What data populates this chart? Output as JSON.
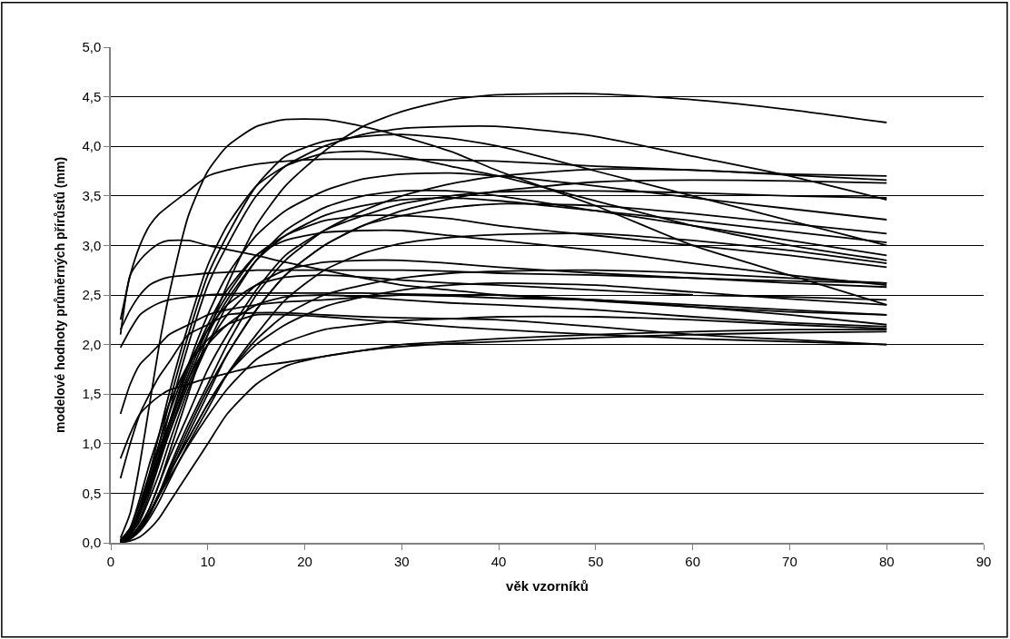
{
  "chart_data": {
    "type": "line",
    "xlabel": "věk vzorníků",
    "ylabel": "modelové hodnoty průměrných přírůstů (mm)",
    "x": [
      1,
      2,
      3,
      4,
      5,
      6,
      8,
      10,
      12,
      15,
      18,
      22,
      26,
      30,
      35,
      40,
      50,
      60,
      70,
      80
    ],
    "xlim": [
      0,
      90
    ],
    "xticks": [
      0,
      10,
      20,
      30,
      40,
      50,
      60,
      70,
      80,
      90
    ],
    "ylim": [
      0,
      5
    ],
    "yticks": [
      {
        "value": 0,
        "label": "0,0"
      },
      {
        "value": 0.5,
        "label": "0,5"
      },
      {
        "value": 1,
        "label": "1,0"
      },
      {
        "value": 1.5,
        "label": "1,5"
      },
      {
        "value": 2,
        "label": "2,0"
      },
      {
        "value": 2.5,
        "label": "2,5"
      },
      {
        "value": 3,
        "label": "3,0"
      },
      {
        "value": 3.5,
        "label": "3,5"
      },
      {
        "value": 4,
        "label": "4,0"
      },
      {
        "value": 4.5,
        "label": "4,5"
      },
      {
        "value": 5,
        "label": "5,0"
      }
    ],
    "grid": "y",
    "series": [
      {
        "color": "#000000",
        "values": [
          0.0,
          0.05,
          0.15,
          0.35,
          0.6,
          0.9,
          1.5,
          2.1,
          2.6,
          3.2,
          3.6,
          3.95,
          4.2,
          4.35,
          4.47,
          4.52,
          4.53,
          4.47,
          4.37,
          4.24
        ]
      },
      {
        "color": "#000000",
        "values": [
          0.05,
          0.3,
          0.8,
          1.4,
          2.0,
          2.5,
          3.3,
          3.75,
          4.0,
          4.2,
          4.27,
          4.27,
          4.2,
          4.1,
          3.95,
          3.75,
          3.4,
          3.0,
          2.7,
          2.4
        ]
      },
      {
        "color": "#000000",
        "values": [
          2.25,
          2.7,
          3.0,
          3.2,
          3.32,
          3.4,
          3.55,
          3.7,
          3.76,
          3.82,
          3.85,
          3.87,
          3.87,
          3.87,
          3.86,
          3.85,
          3.8,
          3.76,
          3.72,
          3.7
        ]
      },
      {
        "color": "#000000",
        "values": [
          2.1,
          2.7,
          2.85,
          2.95,
          3.02,
          3.05,
          3.05,
          3.0,
          2.96,
          2.9,
          2.83,
          2.75,
          2.67,
          2.6,
          2.55,
          2.5,
          2.44,
          2.38,
          2.33,
          2.3
        ]
      },
      {
        "color": "#000000",
        "values": [
          2.15,
          2.35,
          2.5,
          2.6,
          2.65,
          2.68,
          2.7,
          2.72,
          2.73,
          2.75,
          2.75,
          2.75,
          2.75,
          2.75,
          2.74,
          2.72,
          2.7,
          2.67,
          2.64,
          2.62
        ]
      },
      {
        "color": "#000000",
        "values": [
          1.97,
          2.15,
          2.3,
          2.37,
          2.42,
          2.45,
          2.48,
          2.5,
          2.51,
          2.52,
          2.52,
          2.52,
          2.52,
          2.51,
          2.5,
          2.5,
          2.45,
          2.4,
          2.35,
          2.3
        ]
      },
      {
        "color": "#000000",
        "values": [
          1.3,
          1.6,
          1.8,
          1.9,
          2.0,
          2.1,
          2.2,
          2.3,
          2.35,
          2.4,
          2.43,
          2.45,
          2.48,
          2.5,
          2.49,
          2.47,
          2.45,
          2.38,
          2.3,
          2.2
        ]
      },
      {
        "color": "#000000",
        "values": [
          0.85,
          1.1,
          1.3,
          1.4,
          1.48,
          1.54,
          1.6,
          1.66,
          1.71,
          1.78,
          1.82,
          1.88,
          1.94,
          2.0,
          2.03,
          2.06,
          2.1,
          2.13,
          2.15,
          2.15
        ]
      },
      {
        "color": "#000000",
        "values": [
          0.65,
          1.0,
          1.3,
          1.5,
          1.68,
          1.82,
          2.1,
          2.2,
          2.3,
          2.32,
          2.32,
          2.3,
          2.28,
          2.27,
          2.26,
          2.25,
          2.18,
          2.1,
          2.05,
          2.0
        ]
      },
      {
        "color": "#000000",
        "values": [
          0.02,
          0.1,
          0.3,
          0.6,
          0.9,
          1.3,
          2.0,
          2.6,
          3.0,
          3.5,
          3.8,
          4.0,
          4.12,
          4.18,
          4.2,
          4.2,
          4.1,
          3.9,
          3.7,
          3.46
        ]
      },
      {
        "color": "#000000",
        "values": [
          0.02,
          0.1,
          0.3,
          0.6,
          1.0,
          1.4,
          2.1,
          2.7,
          3.1,
          3.6,
          3.9,
          4.05,
          4.1,
          4.12,
          4.08,
          4.0,
          3.75,
          3.5,
          3.25,
          3.0
        ]
      },
      {
        "color": "#000000",
        "values": [
          0.02,
          0.12,
          0.35,
          0.7,
          1.1,
          1.5,
          2.2,
          2.8,
          3.2,
          3.6,
          3.8,
          3.93,
          3.95,
          3.9,
          3.8,
          3.7,
          3.45,
          3.2,
          3.0,
          2.85
        ]
      },
      {
        "color": "#000000",
        "values": [
          0.02,
          0.1,
          0.3,
          0.55,
          0.85,
          1.2,
          1.8,
          2.3,
          2.7,
          3.1,
          3.35,
          3.55,
          3.67,
          3.72,
          3.73,
          3.7,
          3.6,
          3.48,
          3.37,
          3.26
        ]
      },
      {
        "color": "#000000",
        "values": [
          0.0,
          0.04,
          0.13,
          0.28,
          0.48,
          0.68,
          1.1,
          1.5,
          1.9,
          2.35,
          2.7,
          3.0,
          3.2,
          3.35,
          3.47,
          3.55,
          3.64,
          3.66,
          3.65,
          3.63
        ]
      },
      {
        "color": "#000000",
        "values": [
          0.01,
          0.05,
          0.15,
          0.3,
          0.5,
          0.75,
          1.2,
          1.6,
          2.0,
          2.5,
          2.85,
          3.15,
          3.35,
          3.5,
          3.62,
          3.7,
          3.77,
          3.76,
          3.71,
          3.66
        ]
      },
      {
        "color": "#000000",
        "values": [
          0.01,
          0.06,
          0.18,
          0.35,
          0.6,
          0.85,
          1.3,
          1.75,
          2.1,
          2.55,
          2.9,
          3.15,
          3.3,
          3.42,
          3.5,
          3.54,
          3.55,
          3.53,
          3.5,
          3.48
        ]
      },
      {
        "color": "#000000",
        "values": [
          0.02,
          0.08,
          0.25,
          0.5,
          0.8,
          1.1,
          1.65,
          2.1,
          2.45,
          2.85,
          3.1,
          3.3,
          3.4,
          3.46,
          3.48,
          3.45,
          3.35,
          3.25,
          3.14,
          3.03
        ]
      },
      {
        "color": "#000000",
        "values": [
          0.01,
          0.05,
          0.15,
          0.3,
          0.5,
          0.72,
          1.15,
          1.55,
          1.9,
          2.35,
          2.7,
          3.0,
          3.2,
          3.3,
          3.38,
          3.42,
          3.4,
          3.32,
          3.22,
          3.12
        ]
      },
      {
        "color": "#000000",
        "values": [
          0.02,
          0.08,
          0.22,
          0.45,
          0.7,
          1.0,
          1.55,
          2.0,
          2.4,
          2.85,
          3.15,
          3.38,
          3.5,
          3.55,
          3.55,
          3.5,
          3.35,
          3.2,
          3.05,
          2.9
        ]
      },
      {
        "color": "#000000",
        "values": [
          0.02,
          0.1,
          0.3,
          0.55,
          0.85,
          1.15,
          1.7,
          2.15,
          2.5,
          2.9,
          3.1,
          3.25,
          3.3,
          3.3,
          3.27,
          3.2,
          3.1,
          3.0,
          2.9,
          2.78
        ]
      },
      {
        "color": "#000000",
        "values": [
          0.01,
          0.04,
          0.12,
          0.25,
          0.42,
          0.62,
          1.0,
          1.35,
          1.7,
          2.1,
          2.45,
          2.75,
          2.92,
          3.02,
          3.08,
          3.11,
          3.12,
          3.05,
          2.95,
          2.82
        ]
      },
      {
        "color": "#000000",
        "values": [
          0.02,
          0.1,
          0.3,
          0.6,
          0.9,
          1.2,
          1.75,
          2.2,
          2.55,
          2.9,
          3.05,
          3.13,
          3.15,
          3.15,
          3.1,
          3.05,
          2.95,
          2.82,
          2.7,
          2.6
        ]
      },
      {
        "color": "#000000",
        "values": [
          0.01,
          0.05,
          0.15,
          0.3,
          0.5,
          0.7,
          1.05,
          1.4,
          1.7,
          2.05,
          2.3,
          2.5,
          2.6,
          2.67,
          2.72,
          2.74,
          2.75,
          2.72,
          2.67,
          2.62
        ]
      },
      {
        "color": "#000000",
        "values": [
          0.02,
          0.1,
          0.3,
          0.55,
          0.85,
          1.1,
          1.6,
          2.0,
          2.3,
          2.6,
          2.75,
          2.83,
          2.85,
          2.85,
          2.82,
          2.78,
          2.72,
          2.67,
          2.62,
          2.58
        ]
      },
      {
        "color": "#000000",
        "values": [
          0.03,
          0.15,
          0.4,
          0.7,
          1.0,
          1.3,
          1.8,
          2.15,
          2.4,
          2.6,
          2.68,
          2.7,
          2.68,
          2.65,
          2.62,
          2.6,
          2.55,
          2.5,
          2.48,
          2.45
        ]
      },
      {
        "color": "#000000",
        "values": [
          0.01,
          0.05,
          0.15,
          0.3,
          0.5,
          0.7,
          1.05,
          1.4,
          1.7,
          2.0,
          2.2,
          2.38,
          2.48,
          2.55,
          2.6,
          2.62,
          2.6,
          2.53,
          2.46,
          2.4
        ]
      },
      {
        "color": "#000000",
        "values": [
          0.02,
          0.12,
          0.35,
          0.65,
          0.95,
          1.2,
          1.65,
          2.0,
          2.2,
          2.4,
          2.48,
          2.5,
          2.48,
          2.45,
          2.42,
          2.4,
          2.35,
          2.28,
          2.22,
          2.18
        ]
      },
      {
        "color": "#000000",
        "values": [
          0.01,
          0.05,
          0.15,
          0.3,
          0.48,
          0.65,
          0.98,
          1.28,
          1.55,
          1.85,
          2.02,
          2.15,
          2.2,
          2.24,
          2.26,
          2.28,
          2.28,
          2.25,
          2.2,
          2.16
        ]
      },
      {
        "color": "#000000",
        "values": [
          0.02,
          0.15,
          0.45,
          0.8,
          1.1,
          1.4,
          1.8,
          2.05,
          2.2,
          2.3,
          2.3,
          2.28,
          2.25,
          2.22,
          2.18,
          2.15,
          2.1,
          2.06,
          2.03,
          2.0
        ]
      },
      {
        "color": "#000000",
        "values": [
          0.0,
          0.02,
          0.06,
          0.14,
          0.25,
          0.4,
          0.7,
          1.0,
          1.3,
          1.6,
          1.78,
          1.88,
          1.94,
          1.98,
          2.01,
          2.03,
          2.07,
          2.1,
          2.12,
          2.13
        ]
      }
    ]
  }
}
